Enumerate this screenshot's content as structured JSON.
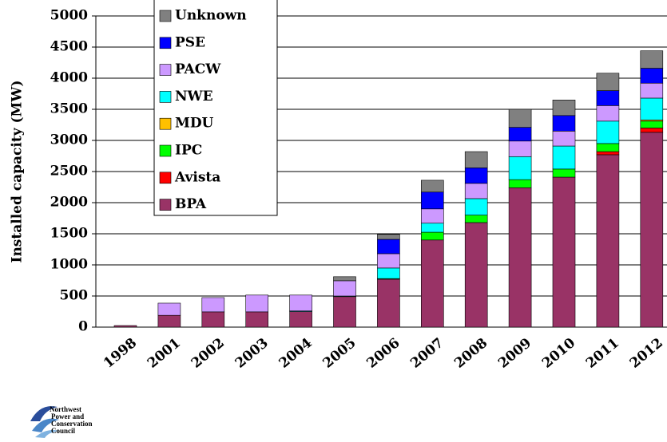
{
  "chart_data": {
    "type": "stacked-bar",
    "y_label": "Installed capacity (MW)",
    "categories": [
      "1998",
      "2001",
      "2002",
      "2003",
      "2004",
      "2005",
      "2006",
      "2007",
      "2008",
      "2009",
      "2010",
      "2011",
      "2012"
    ],
    "series": [
      {
        "name": "BPA",
        "color": "#993366",
        "values": [
          25,
          190,
          245,
          245,
          250,
          490,
          770,
          1400,
          1680,
          2240,
          2410,
          2770,
          3130
        ]
      },
      {
        "name": "Avista",
        "color": "#ff0000",
        "values": [
          0,
          0,
          0,
          0,
          0,
          0,
          0,
          0,
          0,
          0,
          0,
          50,
          70
        ]
      },
      {
        "name": "IPC",
        "color": "#00ff00",
        "values": [
          0,
          0,
          0,
          0,
          0,
          0,
          10,
          125,
          120,
          130,
          130,
          130,
          110
        ]
      },
      {
        "name": "MDU",
        "color": "#ffc000",
        "values": [
          0,
          0,
          0,
          0,
          0,
          0,
          0,
          0,
          0,
          0,
          0,
          0,
          20
        ]
      },
      {
        "name": "NWE",
        "color": "#00ffff",
        "values": [
          0,
          0,
          0,
          0,
          10,
          10,
          170,
          145,
          265,
          370,
          370,
          360,
          350
        ]
      },
      {
        "name": "PACW",
        "color": "#cc99ff",
        "values": [
          0,
          195,
          230,
          270,
          255,
          245,
          230,
          230,
          245,
          250,
          240,
          250,
          240
        ]
      },
      {
        "name": "PSE",
        "color": "#0000ff",
        "values": [
          0,
          0,
          0,
          0,
          0,
          0,
          230,
          270,
          250,
          220,
          250,
          240,
          240
        ]
      },
      {
        "name": "Unknown",
        "color": "#808080",
        "values": [
          0,
          0,
          0,
          0,
          0,
          65,
          80,
          190,
          260,
          290,
          250,
          280,
          280
        ]
      }
    ],
    "ylim": [
      0,
      5000
    ],
    "yticks": [
      0,
      500,
      1000,
      1500,
      2000,
      2500,
      3000,
      3500,
      4000,
      4500,
      5000
    ],
    "grid": true,
    "legend": "top-left"
  },
  "logo": [
    "Northwest",
    "Power and",
    "Conservation",
    "Council"
  ]
}
